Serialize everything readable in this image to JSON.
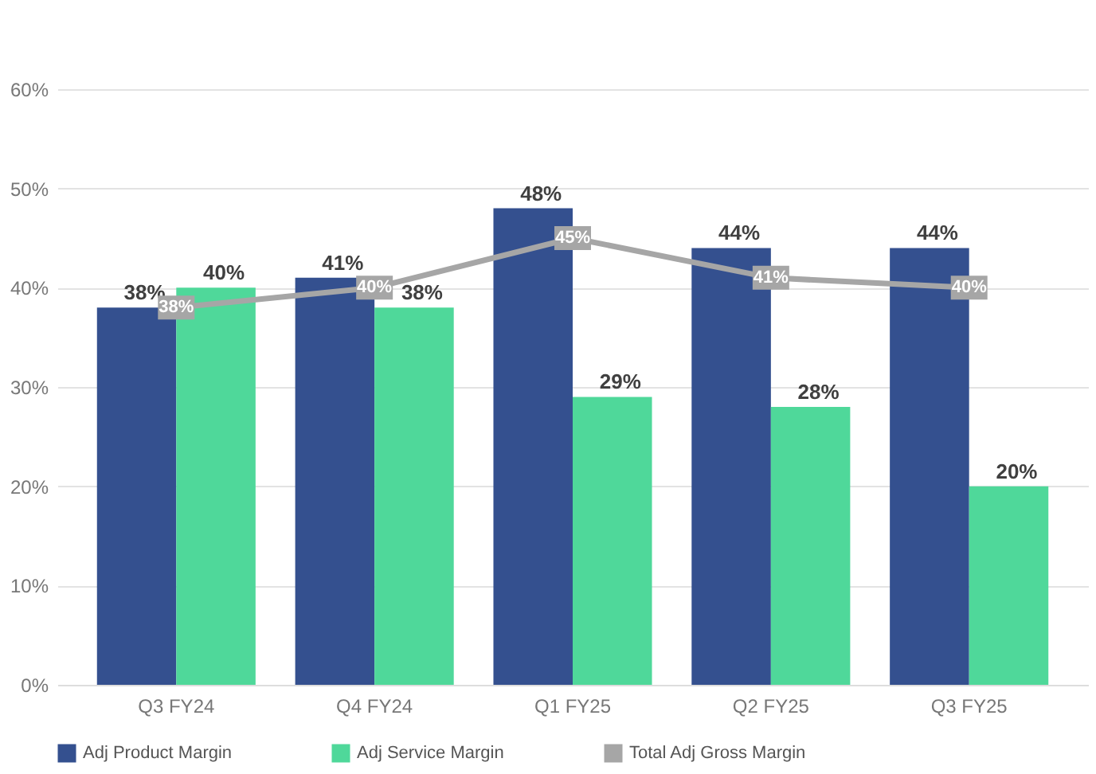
{
  "chart_data": {
    "type": "bar",
    "categories": [
      "Q3 FY24",
      "Q4 FY24",
      "Q1 FY25",
      "Q2 FY25",
      "Q3 FY25"
    ],
    "series": [
      {
        "name": "Adj Product Margin",
        "color": "#34508f",
        "values": [
          38,
          41,
          48,
          44,
          44
        ],
        "value_labels": [
          "38%",
          "41%",
          "48%",
          "44%",
          "44%"
        ]
      },
      {
        "name": "Adj Service Margin",
        "color": "#4fd89a",
        "values": [
          40,
          38,
          29,
          28,
          20
        ],
        "value_labels": [
          "40%",
          "38%",
          "29%",
          "28%",
          "20%"
        ]
      },
      {
        "name": "Total Adj Gross Margin",
        "type": "line",
        "marker": "square",
        "color": "#a6a6a6",
        "values": [
          38,
          40,
          45,
          41,
          40
        ],
        "value_labels": [
          "38%",
          "40%",
          "45%",
          "41%",
          "40%"
        ]
      }
    ],
    "ylim": [
      0,
      60
    ],
    "yticks": [
      {
        "value": 0,
        "label": "0%"
      },
      {
        "value": 10,
        "label": "10%"
      },
      {
        "value": 20,
        "label": "20%"
      },
      {
        "value": 30,
        "label": "30%"
      },
      {
        "value": 40,
        "label": "40%"
      },
      {
        "value": 50,
        "label": "50%"
      },
      {
        "value": 60,
        "label": "60%"
      }
    ],
    "grid": "y",
    "legend": "bottom"
  }
}
